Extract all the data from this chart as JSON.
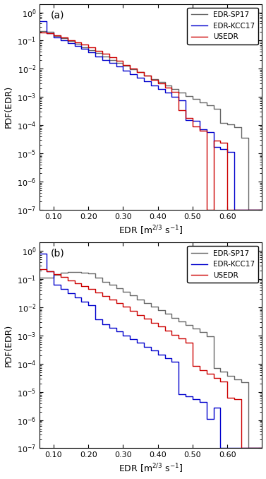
{
  "panel_a": {
    "label": "(a)",
    "xlim": [
      0.06,
      0.7
    ],
    "ylim": [
      1e-07,
      2
    ],
    "xticks": [
      0.1,
      0.2,
      0.3,
      0.4,
      0.5,
      0.6
    ],
    "yticks": [
      1e-07,
      1e-06,
      1e-05,
      0.0001,
      0.001,
      0.01,
      0.1,
      1.0
    ],
    "bin_edges": [
      0.06,
      0.08,
      0.1,
      0.12,
      0.14,
      0.16,
      0.18,
      0.2,
      0.22,
      0.24,
      0.26,
      0.28,
      0.3,
      0.32,
      0.34,
      0.36,
      0.38,
      0.4,
      0.42,
      0.44,
      0.46,
      0.48,
      0.5,
      0.52,
      0.54,
      0.56,
      0.58,
      0.6,
      0.62,
      0.64,
      0.66,
      0.7
    ],
    "sp17": [
      0.22,
      0.2,
      0.145,
      0.125,
      0.095,
      0.075,
      0.058,
      0.046,
      0.036,
      0.028,
      0.021,
      0.016,
      0.013,
      0.0098,
      0.0075,
      0.0058,
      0.0044,
      0.0034,
      0.0025,
      0.0019,
      0.00145,
      0.0011,
      0.00085,
      0.00065,
      0.0005,
      0.00038,
      0.00012,
      0.00011,
      8.5e-05,
      3.5e-05,
      1e-07
    ],
    "kcc17": [
      0.5,
      0.18,
      0.13,
      0.105,
      0.082,
      0.064,
      0.05,
      0.038,
      0.028,
      0.021,
      0.016,
      0.012,
      0.0088,
      0.0066,
      0.0049,
      0.0036,
      0.0026,
      0.00195,
      0.00142,
      0.00102,
      0.00074,
      0.000155,
      0.000145,
      7.2e-05,
      5.6e-05,
      1.65e-05,
      1.45e-05,
      1.15e-05,
      1e-07,
      1e-07,
      1e-07
    ],
    "usedr": [
      0.19,
      0.185,
      0.155,
      0.13,
      0.105,
      0.088,
      0.072,
      0.058,
      0.044,
      0.034,
      0.025,
      0.019,
      0.014,
      0.0104,
      0.0077,
      0.0056,
      0.0041,
      0.003,
      0.00215,
      0.00155,
      0.00033,
      0.000175,
      9e-05,
      6.2e-05,
      1e-07,
      2.8e-05,
      2.4e-05,
      1e-07,
      1e-07,
      1e-07,
      1e-07
    ]
  },
  "panel_b": {
    "label": "(b)",
    "xlim": [
      0.06,
      0.7
    ],
    "ylim": [
      1e-07,
      2
    ],
    "xticks": [
      0.1,
      0.2,
      0.3,
      0.4,
      0.5,
      0.6
    ],
    "yticks": [
      1e-07,
      1e-06,
      1e-05,
      0.0001,
      0.001,
      0.01,
      0.1,
      1.0
    ],
    "bin_edges": [
      0.06,
      0.08,
      0.1,
      0.12,
      0.14,
      0.16,
      0.18,
      0.2,
      0.22,
      0.24,
      0.26,
      0.28,
      0.3,
      0.32,
      0.34,
      0.36,
      0.38,
      0.4,
      0.42,
      0.44,
      0.46,
      0.48,
      0.5,
      0.52,
      0.54,
      0.56,
      0.58,
      0.6,
      0.62,
      0.64,
      0.66,
      0.7
    ],
    "sp17": [
      0.11,
      0.11,
      0.14,
      0.165,
      0.175,
      0.175,
      0.168,
      0.16,
      0.11,
      0.082,
      0.062,
      0.047,
      0.035,
      0.026,
      0.019,
      0.014,
      0.0105,
      0.0079,
      0.0058,
      0.0043,
      0.0032,
      0.0024,
      0.00175,
      0.0013,
      0.00095,
      6.8e-05,
      5.2e-05,
      3.8e-05,
      2.8e-05,
      2.15e-05,
      1e-07
    ],
    "kcc17": [
      0.8,
      0.19,
      0.065,
      0.045,
      0.032,
      0.023,
      0.016,
      0.012,
      0.0038,
      0.0025,
      0.00185,
      0.00138,
      0.00102,
      0.00075,
      0.00055,
      0.0004,
      0.000295,
      0.000215,
      0.000158,
      0.000115,
      8.5e-06,
      6.8e-06,
      5.4e-06,
      4.4e-06,
      1.1e-06,
      2.8e-06,
      1e-07,
      1e-07,
      1e-07,
      1e-07,
      1e-07
    ],
    "usedr": [
      0.23,
      0.19,
      0.15,
      0.118,
      0.092,
      0.072,
      0.056,
      0.044,
      0.033,
      0.025,
      0.019,
      0.014,
      0.0103,
      0.0075,
      0.0054,
      0.0039,
      0.0028,
      0.00205,
      0.00148,
      0.00107,
      0.000775,
      0.00056,
      8.2e-05,
      6e-05,
      4.4e-05,
      3.2e-05,
      2.3e-05,
      6.2e-06,
      5.5e-06,
      1e-07,
      1e-07
    ]
  },
  "colors": {
    "sp17": "#666666",
    "kcc17": "#0000cc",
    "usedr": "#cc0000"
  },
  "legend": [
    "EDR-SP17",
    "EDR-KCC17",
    "USEDR"
  ],
  "linewidth": 1.0,
  "xlabel": "EDR [m$^{2/3}$ s$^{-1}$]",
  "ylabel": "PDF(EDR)"
}
